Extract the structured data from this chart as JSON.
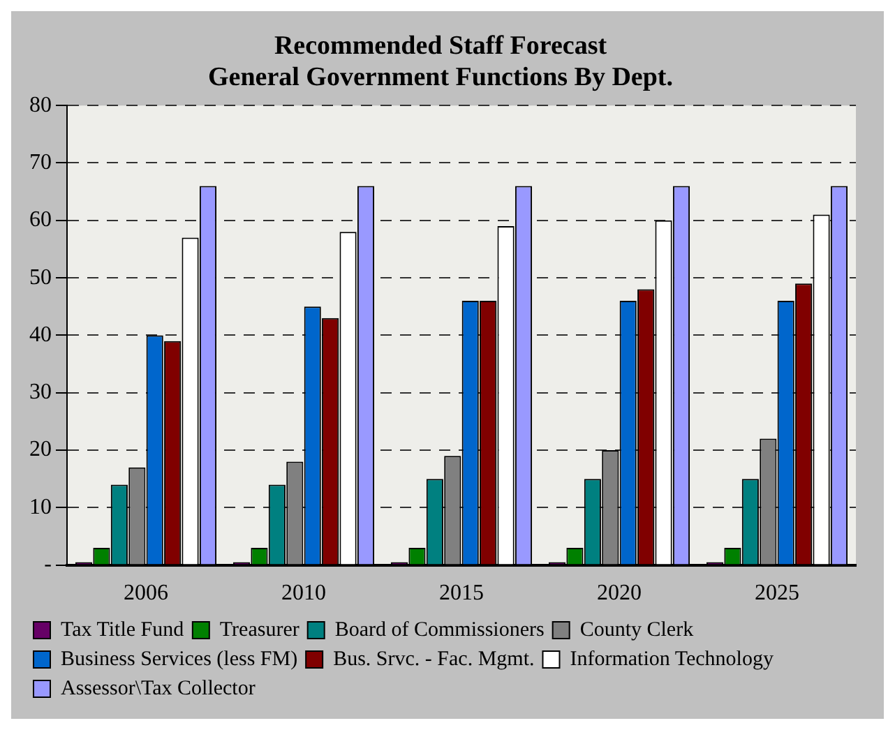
{
  "chart_data": {
    "type": "bar",
    "title": "Recommended Staff Forecast",
    "subtitle": "General Government Functions By Dept.",
    "categories": [
      "2006",
      "2010",
      "2015",
      "2020",
      "2025"
    ],
    "series": [
      {
        "name": "Tax Title Fund",
        "color": "#660066",
        "values": [
          0.5,
          0.5,
          0.5,
          0.5,
          0.5
        ]
      },
      {
        "name": "Treasurer",
        "color": "#008000",
        "values": [
          3,
          3,
          3,
          3,
          3
        ]
      },
      {
        "name": "Board of Commissioners",
        "color": "#008080",
        "values": [
          14,
          14,
          15,
          15,
          15
        ]
      },
      {
        "name": "County Clerk",
        "color": "#808080",
        "values": [
          17,
          18,
          19,
          20,
          22
        ]
      },
      {
        "name": "Business Services (less FM)",
        "color": "#0066cc",
        "values": [
          40,
          45,
          46,
          46,
          46
        ]
      },
      {
        "name": "Bus. Srvc. - Fac. Mgmt.",
        "color": "#800000",
        "values": [
          39,
          43,
          46,
          48,
          49
        ]
      },
      {
        "name": "Information Technology",
        "color": "#ffffff",
        "values": [
          57,
          58,
          59,
          60,
          61
        ]
      },
      {
        "name": "Assessor\\Tax Collector",
        "color": "#9999ff",
        "values": [
          66,
          66,
          66,
          66,
          66
        ]
      }
    ],
    "ylim": [
      0,
      80
    ],
    "yticks": [
      {
        "value": 0,
        "label": "-"
      },
      10,
      20,
      30,
      40,
      50,
      60,
      70,
      80
    ],
    "grid": "y",
    "legend": "bottom"
  }
}
